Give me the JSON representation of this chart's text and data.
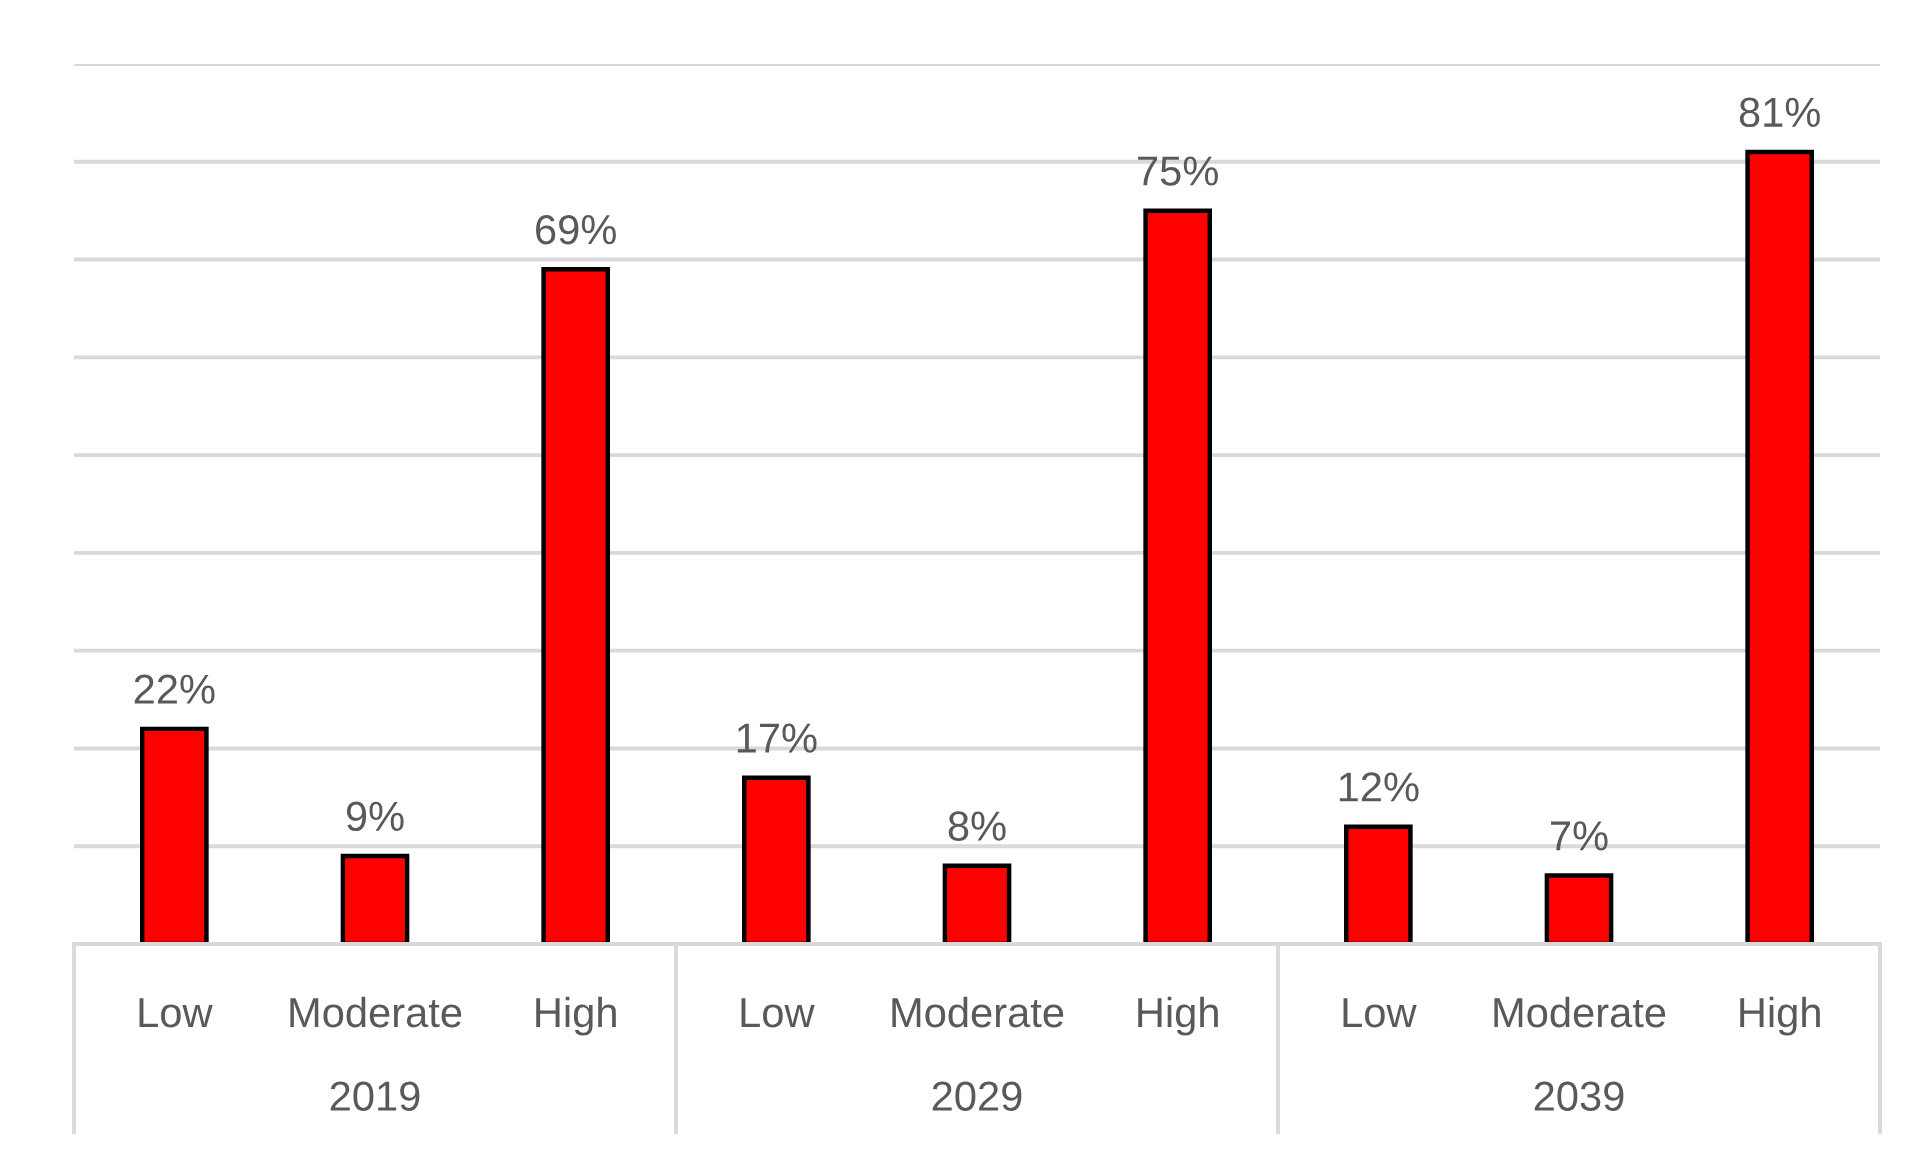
{
  "chart_data": {
    "type": "bar",
    "categories": [
      "Low",
      "Moderate",
      "High",
      "Low",
      "Moderate",
      "High",
      "Low",
      "Moderate",
      "High"
    ],
    "values": [
      22,
      9,
      69,
      17,
      8,
      75,
      12,
      7,
      81
    ],
    "value_labels": [
      "22%",
      "9%",
      "69%",
      "17%",
      "8%",
      "75%",
      "12%",
      "7%",
      "81%"
    ],
    "color": "#ff0000",
    "ylim": [
      0,
      90
    ],
    "yticks": [
      0,
      10,
      20,
      30,
      40,
      50,
      60,
      70,
      80,
      90
    ],
    "tick_labels": "x",
    "grid": "y",
    "annotations": [
      "2019",
      "2029",
      "2039"
    ]
  }
}
